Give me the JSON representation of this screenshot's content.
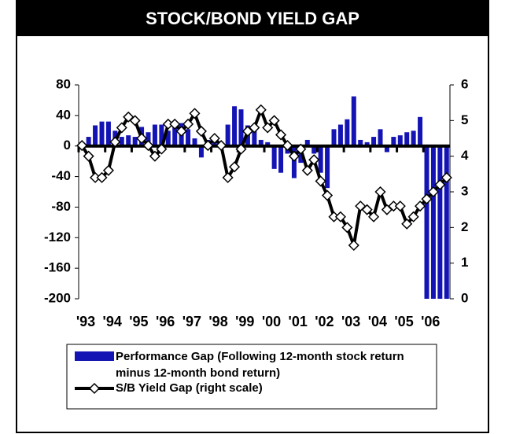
{
  "chart_data": {
    "type": "bar",
    "title": "STOCK/BOND YIELD GAP",
    "categories": [
      "'93",
      null,
      null,
      null,
      "'94",
      null,
      null,
      null,
      "'95",
      null,
      null,
      null,
      "'96",
      null,
      null,
      null,
      "'97",
      null,
      null,
      null,
      "'98",
      null,
      null,
      null,
      "'99",
      null,
      null,
      null,
      "'00",
      null,
      null,
      null,
      "'01",
      null,
      null,
      null,
      "'02",
      null,
      null,
      null,
      "'03",
      null,
      null,
      null,
      "'04",
      null,
      null,
      null,
      "'05",
      null,
      null,
      null,
      "'06",
      null,
      null,
      null
    ],
    "series": [
      {
        "name": "Performance Gap (Following 12-month stock return minus 12-month bond return)",
        "type": "bar",
        "color": "#1414b4",
        "values": [
          5,
          12,
          27,
          32,
          32,
          20,
          12,
          14,
          12,
          25,
          18,
          28,
          28,
          20,
          25,
          30,
          22,
          10,
          -15,
          8,
          12,
          5,
          28,
          52,
          48,
          27,
          20,
          8,
          5,
          -30,
          -35,
          -10,
          -42,
          -22,
          8,
          -10,
          -35,
          -55,
          22,
          28,
          35,
          65,
          8,
          5,
          12,
          22,
          -8,
          12,
          14,
          18,
          20,
          38,
          -200,
          -200,
          -200,
          -200
        ]
      },
      {
        "name": "S/B Yield Gap (right scale)",
        "type": "line",
        "axis": "y2",
        "color": "#000000",
        "values": [
          4.3,
          4.0,
          3.4,
          3.4,
          3.6,
          4.4,
          4.8,
          5.1,
          5.0,
          4.5,
          4.3,
          4.0,
          4.2,
          4.9,
          4.9,
          4.7,
          4.9,
          5.2,
          4.7,
          4.3,
          4.5,
          4.3,
          3.4,
          3.7,
          4.2,
          4.7,
          4.8,
          5.3,
          4.8,
          5.0,
          4.6,
          4.3,
          4.0,
          4.2,
          3.6,
          3.9,
          3.3,
          2.9,
          2.3,
          2.3,
          2.0,
          1.5,
          2.6,
          2.5,
          2.3,
          3.0,
          2.5,
          2.6,
          2.6,
          2.1,
          2.3,
          2.6,
          2.8,
          3.0,
          3.2,
          3.4
        ]
      }
    ],
    "ylim": [
      -200,
      80
    ],
    "yticks": [
      -200,
      -160,
      -120,
      -80,
      -40,
      0,
      40,
      80
    ],
    "y2lim": [
      0,
      6
    ],
    "y2ticks": [
      0,
      1,
      2,
      3,
      4,
      5,
      6
    ]
  }
}
